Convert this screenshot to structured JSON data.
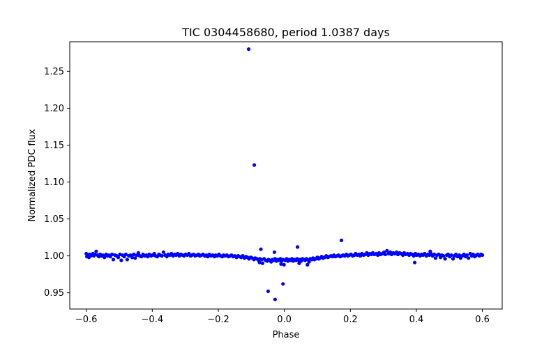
{
  "chart_data": {
    "type": "scatter",
    "title": "TIC 0304458680, period 1.0387 days",
    "xlabel": "Phase",
    "ylabel": "Normalized PDC flux",
    "xlim": [
      -0.65,
      0.66
    ],
    "ylim": [
      0.928,
      1.29
    ],
    "xticks": [
      -0.6,
      -0.4,
      -0.2,
      0.0,
      0.2,
      0.4,
      0.6
    ],
    "xtick_labels": [
      "−0.6",
      "−0.4",
      "−0.2",
      "0.0",
      "0.2",
      "0.4",
      "0.6"
    ],
    "yticks": [
      0.95,
      1.0,
      1.05,
      1.1,
      1.15,
      1.2,
      1.25
    ],
    "ytick_labels": [
      "0.95",
      "1.00",
      "1.05",
      "1.10",
      "1.15",
      "1.20",
      "1.25"
    ],
    "grid": false,
    "marker_color": "#0000ff",
    "series": [
      {
        "points": [
          [
            -0.6,
            1.003
          ],
          [
            -0.598,
            0.999
          ],
          [
            -0.595,
            1.001
          ],
          [
            -0.592,
            0.998
          ],
          [
            -0.59,
            1.002
          ],
          [
            -0.587,
            1.0
          ],
          [
            -0.584,
            1.001
          ],
          [
            -0.58,
            1.003
          ],
          [
            -0.577,
            1.0
          ],
          [
            -0.574,
            1.002
          ],
          [
            -0.57,
            1.006
          ],
          [
            -0.566,
            1.001
          ],
          [
            -0.562,
            0.999
          ],
          [
            -0.558,
            1.002
          ],
          [
            -0.554,
            1.0
          ],
          [
            -0.55,
            1.001
          ],
          [
            -0.545,
            0.998
          ],
          [
            -0.54,
            1.002
          ],
          [
            -0.536,
            1.0
          ],
          [
            -0.532,
            1.001
          ],
          [
            -0.527,
            0.999
          ],
          [
            -0.522,
            1.002
          ],
          [
            -0.518,
            0.995
          ],
          [
            -0.513,
            1.001
          ],
          [
            -0.508,
            1.0
          ],
          [
            -0.503,
            0.998
          ],
          [
            -0.498,
            1.002
          ],
          [
            -0.494,
            0.994
          ],
          [
            -0.49,
            1.001
          ],
          [
            -0.485,
            0.999
          ],
          [
            -0.48,
            1.002
          ],
          [
            -0.476,
            0.995
          ],
          [
            -0.471,
            1.0
          ],
          [
            -0.466,
            1.001
          ],
          [
            -0.461,
            0.998
          ],
          [
            -0.456,
            1.002
          ],
          [
            -0.452,
            0.997
          ],
          [
            -0.447,
            1.001
          ],
          [
            -0.442,
            1.004
          ],
          [
            -0.438,
            1.0
          ],
          [
            -0.433,
            0.999
          ],
          [
            -0.428,
            1.002
          ],
          [
            -0.423,
            1.0
          ],
          [
            -0.418,
            1.001
          ],
          [
            -0.414,
            0.999
          ],
          [
            -0.409,
            1.002
          ],
          [
            -0.404,
            1.0
          ],
          [
            -0.399,
            1.001
          ],
          [
            -0.394,
            1.003
          ],
          [
            -0.39,
            1.0
          ],
          [
            -0.385,
            0.999
          ],
          [
            -0.38,
            1.002
          ],
          [
            -0.376,
            1.001
          ],
          [
            -0.371,
            1.0
          ],
          [
            -0.366,
            1.005
          ],
          [
            -0.361,
            1.001
          ],
          [
            -0.356,
            0.999
          ],
          [
            -0.352,
            1.002
          ],
          [
            -0.347,
            1.001
          ],
          [
            -0.342,
            1.003
          ],
          [
            -0.337,
            1.0
          ],
          [
            -0.332,
            1.002
          ],
          [
            -0.328,
            1.001
          ],
          [
            -0.323,
            1.003
          ],
          [
            -0.318,
            1.0
          ],
          [
            -0.313,
            1.002
          ],
          [
            -0.308,
            1.001
          ],
          [
            -0.304,
            1.0
          ],
          [
            -0.299,
            1.002
          ],
          [
            -0.294,
            1.001
          ],
          [
            -0.289,
            1.003
          ],
          [
            -0.284,
            1.0
          ],
          [
            -0.28,
            1.001
          ],
          [
            -0.275,
            1.002
          ],
          [
            -0.27,
            1.0
          ],
          [
            -0.265,
            1.001
          ],
          [
            -0.26,
            1.002
          ],
          [
            -0.256,
            1.0
          ],
          [
            -0.251,
            1.001
          ],
          [
            -0.246,
            1.002
          ],
          [
            -0.241,
            1.0
          ],
          [
            -0.236,
            1.001
          ],
          [
            -0.232,
            0.999
          ],
          [
            -0.227,
            1.002
          ],
          [
            -0.222,
            1.0
          ],
          [
            -0.217,
            1.001
          ],
          [
            -0.212,
            0.999
          ],
          [
            -0.208,
            1.001
          ],
          [
            -0.203,
            1.0
          ],
          [
            -0.198,
            1.002
          ],
          [
            -0.193,
            1.0
          ],
          [
            -0.188,
            0.999
          ],
          [
            -0.184,
            1.001
          ],
          [
            -0.179,
            1.0
          ],
          [
            -0.174,
            1.001
          ],
          [
            -0.169,
            0.999
          ],
          [
            -0.164,
            1.0
          ],
          [
            -0.16,
            1.001
          ],
          [
            -0.155,
            0.999
          ],
          [
            -0.15,
            1.0
          ],
          [
            -0.145,
            0.998
          ],
          [
            -0.14,
            1.0
          ],
          [
            -0.136,
            0.999
          ],
          [
            -0.131,
            0.998
          ],
          [
            -0.126,
            1.0
          ],
          [
            -0.121,
            0.997
          ],
          [
            -0.116,
            0.999
          ],
          [
            -0.112,
            0.998
          ],
          [
            -0.107,
            0.996
          ],
          [
            -0.102,
            0.998
          ],
          [
            -0.097,
            0.997
          ],
          [
            -0.092,
            0.995
          ],
          [
            -0.088,
            0.997
          ],
          [
            -0.083,
            0.996
          ],
          [
            -0.078,
            0.994
          ],
          [
            -0.074,
            0.996
          ],
          [
            -0.069,
            0.995
          ],
          [
            -0.066,
            0.99
          ],
          [
            -0.061,
            0.996
          ],
          [
            -0.057,
            0.994
          ],
          [
            -0.052,
            0.993
          ],
          [
            -0.048,
            0.995
          ],
          [
            -0.044,
            0.994
          ],
          [
            -0.04,
            0.992
          ],
          [
            -0.036,
            0.995
          ],
          [
            -0.032,
            0.994
          ],
          [
            -0.028,
            0.996
          ],
          [
            -0.024,
            0.993
          ],
          [
            -0.02,
            0.995
          ],
          [
            -0.016,
            0.994
          ],
          [
            -0.012,
            0.996
          ],
          [
            -0.008,
            0.993
          ],
          [
            -0.004,
            0.995
          ],
          [
            -0.001,
            0.988
          ],
          [
            0.003,
            0.994
          ],
          [
            0.007,
            0.996
          ],
          [
            0.011,
            0.993
          ],
          [
            0.015,
            0.995
          ],
          [
            0.019,
            0.994
          ],
          [
            0.023,
            0.996
          ],
          [
            0.027,
            0.993
          ],
          [
            0.031,
            0.995
          ],
          [
            0.035,
            0.994
          ],
          [
            0.039,
            0.996
          ],
          [
            0.043,
            0.994
          ],
          [
            0.047,
            0.995
          ],
          [
            0.051,
            0.993
          ],
          [
            0.055,
            0.996
          ],
          [
            0.059,
            0.995
          ],
          [
            0.063,
            0.994
          ],
          [
            0.067,
            0.996
          ],
          [
            0.071,
            0.995
          ],
          [
            0.075,
            0.992
          ],
          [
            0.079,
            0.996
          ],
          [
            0.083,
            0.995
          ],
          [
            0.087,
            0.997
          ],
          [
            0.091,
            0.995
          ],
          [
            0.095,
            0.996
          ],
          [
            0.1,
            0.998
          ],
          [
            0.104,
            0.996
          ],
          [
            0.108,
            0.997
          ],
          [
            0.113,
            0.999
          ],
          [
            0.118,
            0.997
          ],
          [
            0.122,
            0.998
          ],
          [
            0.127,
            1.0
          ],
          [
            0.132,
            0.998
          ],
          [
            0.136,
            0.999
          ],
          [
            0.141,
            1.0
          ],
          [
            0.146,
            0.999
          ],
          [
            0.15,
            1.001
          ],
          [
            0.155,
            0.999
          ],
          [
            0.16,
            1.0
          ],
          [
            0.164,
            1.001
          ],
          [
            0.169,
            0.999
          ],
          [
            0.174,
            1.0
          ],
          [
            0.178,
            1.001
          ],
          [
            0.183,
            1.0
          ],
          [
            0.188,
            1.002
          ],
          [
            0.193,
            1.0
          ],
          [
            0.197,
            1.001
          ],
          [
            0.202,
            1.002
          ],
          [
            0.207,
            1.0
          ],
          [
            0.212,
            1.001
          ],
          [
            0.216,
            1.003
          ],
          [
            0.221,
            1.001
          ],
          [
            0.226,
            1.002
          ],
          [
            0.23,
            1.0
          ],
          [
            0.235,
            1.003
          ],
          [
            0.24,
            1.001
          ],
          [
            0.245,
            1.002
          ],
          [
            0.25,
            1.004
          ],
          [
            0.254,
            1.001
          ],
          [
            0.259,
            1.003
          ],
          [
            0.264,
            1.002
          ],
          [
            0.268,
            1.004
          ],
          [
            0.273,
            1.002
          ],
          [
            0.278,
            1.003
          ],
          [
            0.283,
            1.001
          ],
          [
            0.287,
            1.004
          ],
          [
            0.292,
            1.002
          ],
          [
            0.297,
            1.003
          ],
          [
            0.302,
            1.005
          ],
          [
            0.306,
            1.002
          ],
          [
            0.311,
            1.007
          ],
          [
            0.316,
            1.003
          ],
          [
            0.321,
            1.005
          ],
          [
            0.325,
            1.002
          ],
          [
            0.33,
            1.004
          ],
          [
            0.335,
            1.003
          ],
          [
            0.34,
            1.005
          ],
          [
            0.344,
            1.002
          ],
          [
            0.349,
            1.004
          ],
          [
            0.354,
            1.003
          ],
          [
            0.359,
            1.001
          ],
          [
            0.363,
            1.004
          ],
          [
            0.368,
            1.002
          ],
          [
            0.373,
            1.003
          ],
          [
            0.378,
            1.001
          ],
          [
            0.382,
            1.003
          ],
          [
            0.387,
            1.002
          ],
          [
            0.392,
            1.0
          ],
          [
            0.397,
            1.003
          ],
          [
            0.401,
            1.001
          ],
          [
            0.406,
            1.002
          ],
          [
            0.411,
            1.0
          ],
          [
            0.416,
            1.002
          ],
          [
            0.42,
            1.001
          ],
          [
            0.425,
            1.003
          ],
          [
            0.43,
            1.0
          ],
          [
            0.435,
            1.002
          ],
          [
            0.439,
            1.001
          ],
          [
            0.444,
            1.003
          ],
          [
            0.449,
            1.0
          ],
          [
            0.454,
            1.002
          ],
          [
            0.458,
            0.997
          ],
          [
            0.463,
            1.001
          ],
          [
            0.468,
            1.002
          ],
          [
            0.473,
            0.998
          ],
          [
            0.477,
            1.001
          ],
          [
            0.482,
            1.0
          ],
          [
            0.487,
            0.996
          ],
          [
            0.492,
            1.001
          ],
          [
            0.496,
            1.002
          ],
          [
            0.501,
            0.999
          ],
          [
            0.506,
            1.001
          ],
          [
            0.511,
            0.996
          ],
          [
            0.515,
            1.0
          ],
          [
            0.52,
            1.002
          ],
          [
            0.525,
            0.999
          ],
          [
            0.53,
            1.001
          ],
          [
            0.534,
            0.997
          ],
          [
            0.539,
            1.0
          ],
          [
            0.544,
            1.002
          ],
          [
            0.549,
            0.999
          ],
          [
            0.553,
            1.001
          ],
          [
            0.558,
            0.997
          ],
          [
            0.563,
            1.003
          ],
          [
            0.568,
            1.0
          ],
          [
            0.572,
            1.002
          ],
          [
            0.577,
            0.999
          ],
          [
            0.582,
            1.001
          ],
          [
            0.586,
            1.002
          ],
          [
            0.591,
            1.0
          ],
          [
            0.596,
            1.002
          ],
          [
            0.6,
            1.001
          ],
          [
            -0.108,
            1.28
          ],
          [
            -0.091,
            1.123
          ],
          [
            -0.071,
            1.009
          ],
          [
            -0.049,
            0.952
          ],
          [
            -0.03,
            1.005
          ],
          [
            -0.028,
            0.941
          ],
          [
            -0.004,
            0.962
          ],
          [
            0.04,
            1.012
          ],
          [
            0.173,
            1.021
          ],
          [
            0.395,
            0.991
          ],
          [
            0.442,
            1.006
          ],
          [
            -0.075,
            0.991
          ],
          [
            0.045,
            0.99
          ],
          [
            0.07,
            0.988
          ],
          [
            -0.01,
            0.989
          ]
        ]
      }
    ]
  }
}
